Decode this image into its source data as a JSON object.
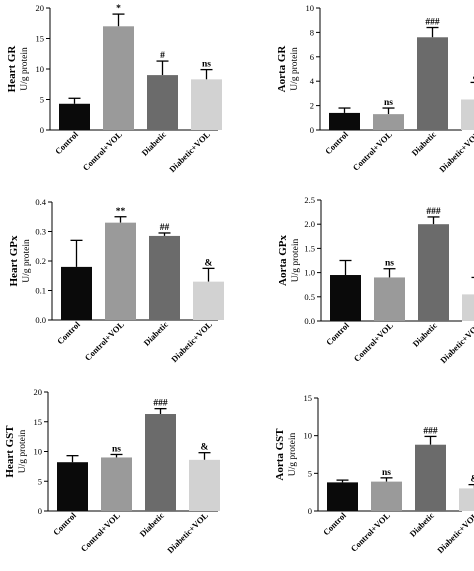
{
  "colors": {
    "bar_fills": [
      "#0a0a0a",
      "#9a9a9a",
      "#6b6b6b",
      "#d2d2d2"
    ],
    "axis": "#000000"
  },
  "chart_data": [
    {
      "type": "bar",
      "ylabel": "Heart GR",
      "yunit": "U/g protein",
      "categories": [
        "Control",
        "Control+VOL",
        "Diabetic",
        "Diabetic+VOL"
      ],
      "values": [
        4.3,
        17.0,
        9.0,
        8.3
      ],
      "errors": [
        0.9,
        2.0,
        2.3,
        1.6
      ],
      "annotations": [
        "",
        "*",
        "#",
        "ns"
      ],
      "ylim": [
        0,
        20
      ],
      "yticks": [
        "0",
        "5",
        "10",
        "15",
        "20"
      ]
    },
    {
      "type": "bar",
      "ylabel": "Aorta GR",
      "yunit": "U/g protein",
      "categories": [
        "Control",
        "Control+VOL",
        "Diabetic",
        "Diabetic+VOL"
      ],
      "values": [
        1.4,
        1.3,
        7.6,
        2.5
      ],
      "errors": [
        0.4,
        0.5,
        0.8,
        1.4
      ],
      "annotations": [
        "",
        "ns",
        "###",
        "&"
      ],
      "ylim": [
        0,
        10
      ],
      "yticks": [
        "0",
        "2",
        "4",
        "6",
        "8",
        "10"
      ]
    },
    {
      "type": "bar",
      "ylabel": "Heart GPx",
      "yunit": "U/g protein",
      "categories": [
        "Control",
        "Control+VOL",
        "Diabetic",
        "Diabetic+VOL"
      ],
      "values": [
        0.18,
        0.33,
        0.285,
        0.13
      ],
      "errors": [
        0.09,
        0.02,
        0.01,
        0.045
      ],
      "annotations": [
        "",
        "**",
        "##",
        "&"
      ],
      "ylim": [
        0,
        0.4
      ],
      "yticks": [
        "0.0",
        "0.1",
        "0.2",
        "0.3",
        "0.4"
      ]
    },
    {
      "type": "bar",
      "ylabel": "Aorta GPx",
      "yunit": "U/g protein",
      "categories": [
        "Control",
        "Control+VOL",
        "Diabetic",
        "Diabetic+VOL"
      ],
      "values": [
        0.95,
        0.9,
        2.0,
        0.55
      ],
      "errors": [
        0.3,
        0.18,
        0.15,
        0.35
      ],
      "annotations": [
        "",
        "ns",
        "###",
        "&"
      ],
      "ylim": [
        0,
        2.5
      ],
      "yticks": [
        "0.0",
        "0.5",
        "1.0",
        "1.5",
        "2.0",
        "2.5"
      ]
    },
    {
      "type": "bar",
      "ylabel": "Heart GST",
      "yunit": "U/g protein",
      "categories": [
        "Control",
        "Control+VOL",
        "Diabetic",
        "Diabetic+VOL"
      ],
      "values": [
        8.2,
        9.0,
        16.3,
        8.6
      ],
      "errors": [
        1.1,
        0.5,
        0.9,
        1.2
      ],
      "annotations": [
        "",
        "ns",
        "###",
        "&"
      ],
      "ylim": [
        0,
        20
      ],
      "yticks": [
        "0",
        "5",
        "10",
        "15",
        "20"
      ]
    },
    {
      "type": "bar",
      "ylabel": "Aorta GST",
      "yunit": "U/g protein",
      "categories": [
        "Control",
        "Control+VOL",
        "Diabetic",
        "Diabetic+VOL"
      ],
      "values": [
        3.8,
        3.9,
        8.8,
        3.0
      ],
      "errors": [
        0.3,
        0.5,
        1.1,
        0.5
      ],
      "annotations": [
        "",
        "ns",
        "###",
        "&"
      ],
      "ylim": [
        0,
        15
      ],
      "yticks": [
        "0",
        "5",
        "10",
        "15"
      ]
    }
  ]
}
